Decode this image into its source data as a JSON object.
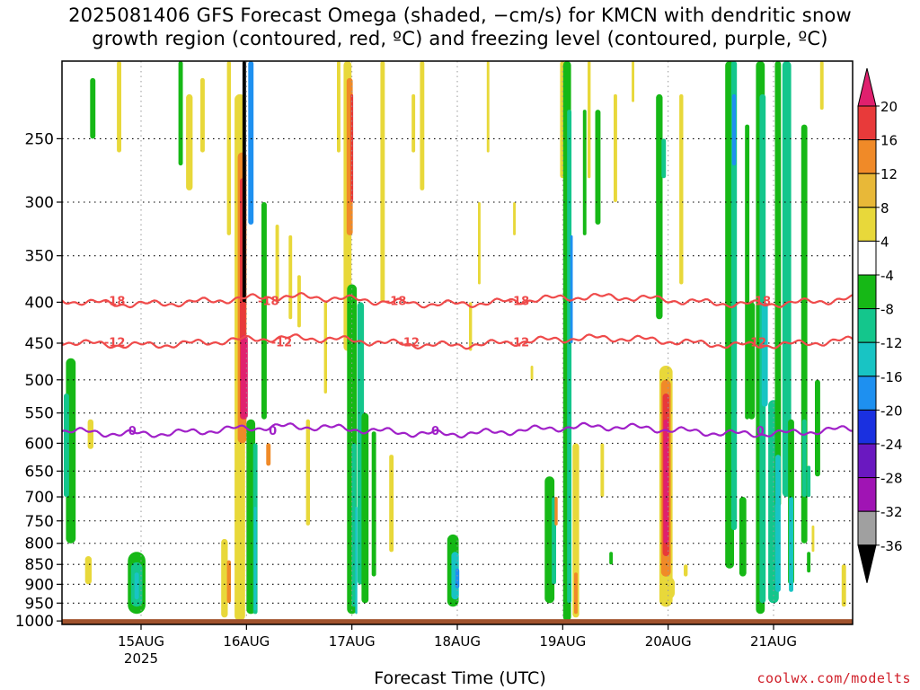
{
  "title": {
    "line1": "2025081406 GFS Forecast Omega (shaded, −cm/s) for KMCN with dendritic snow",
    "line2": "growth region (contoured, red, ºC) and freezing level (contoured, purple, ºC)"
  },
  "credit": "coolwx.com/modelts",
  "chart_data": {
    "type": "heatmap",
    "xlabel": "Forecast Time (UTC)",
    "ylabel": "",
    "x_ticks": [
      {
        "label": "15AUG",
        "sub": "2025",
        "t": 18
      },
      {
        "label": "16AUG",
        "sub": "",
        "t": 42
      },
      {
        "label": "17AUG",
        "sub": "",
        "t": 66
      },
      {
        "label": "18AUG",
        "sub": "",
        "t": 90
      },
      {
        "label": "19AUG",
        "sub": "",
        "t": 114
      },
      {
        "label": "20AUG",
        "sub": "",
        "t": 138
      },
      {
        "label": "21AUG",
        "sub": "",
        "t": 162
      }
    ],
    "xlim_hours": [
      0,
      180
    ],
    "y_ticks": [
      250,
      300,
      350,
      400,
      450,
      500,
      550,
      600,
      650,
      700,
      750,
      800,
      850,
      900,
      950,
      1000
    ],
    "ylim_hpa": [
      1010,
      200
    ],
    "log_pressure_axis": true,
    "grid": true,
    "colorbar": {
      "labels": [
        "20",
        "16",
        "12",
        "8",
        "4",
        "-4",
        "-8",
        "-12",
        "-16",
        "-20",
        "-24",
        "-28",
        "-32",
        "-36"
      ],
      "colors": [
        "#e0206e",
        "#e83a3a",
        "#f08a28",
        "#e8b838",
        "#e8d83a",
        "#ffffff",
        "#16b816",
        "#14c68c",
        "#18c4c4",
        "#1e90f0",
        "#1a30e0",
        "#6a18c0",
        "#a014b4",
        "#a0a0a0",
        "#000000"
      ]
    },
    "contours": [
      {
        "name": "-18",
        "color": "#ef4a4a",
        "level_hpa": 398,
        "labels_at_hours": [
          12,
          47,
          76,
          104,
          159
        ]
      },
      {
        "name": "-12",
        "color": "#ef4a4a",
        "level_hpa": 448,
        "labels_at_hours": [
          12,
          50,
          79,
          104,
          158
        ]
      },
      {
        "name": "0",
        "color": "#a020c8",
        "level_hpa": 578,
        "labels_at_hours": [
          16,
          48,
          85,
          159
        ]
      }
    ],
    "ground_hpa": 1000,
    "ground_color": "#a0522d"
  }
}
